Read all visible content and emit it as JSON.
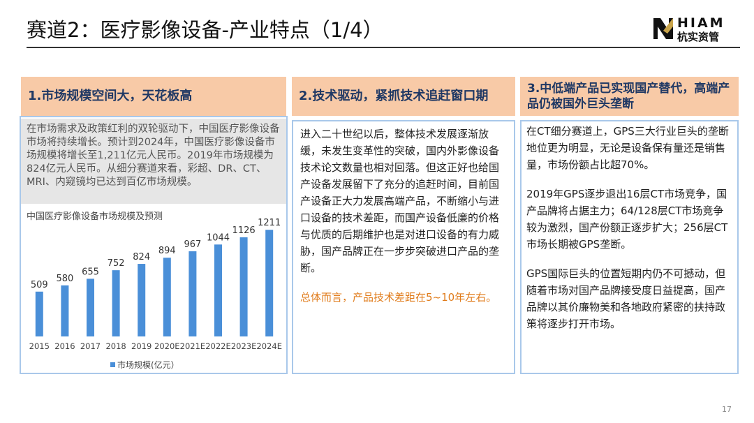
{
  "header": {
    "title": "赛道2：医疗影像设备-产业特点（1/4）",
    "logo_en": "HIAM",
    "logo_cn": "杭实资管"
  },
  "columns": [
    {
      "heading": "1.市场规模空间大，天花板高",
      "paragraphs": [
        "在市场需求及政策红利的双轮驱动下，中国医疗影像设备市场将持续增长。预计到2024年，中国医疗影像设备市场规模将增长至1,211亿元人民币。2019年市场规模为824亿元人民币。从细分赛道来看，彩超、DR、CT、MRI、内窥镜均已达到百亿市场规模。"
      ]
    },
    {
      "heading": "2.技术驱动，紧抓技术追赶窗口期",
      "paragraphs": [
        "进入二十世纪以后，整体技术发展逐渐放缓，未发生变革性的突破，国内外影像设备技术论文数量也相对回落。但这正好也给国产设备发展留下了充分的追赶时间，目前国产设备正大力发展高端产品，不断缩小与进口设备的技术差距，而国产设备低廉的价格与优质的后期维护也是对进口设备的有力威胁，国产品牌正在一步步突破进口产品的垄断。",
        "总体而言，产品技术差距在5~10年左右。"
      ]
    },
    {
      "heading": "3.中低端产品已实现国产替代，高端产品仍被国外巨头垄断",
      "paragraphs": [
        "在CT细分赛道上，GPS三大行业巨头的垄断地位更为明显，无论是设备保有量还是销售量，市场份额占比超70%。",
        "2019年GPS逐步退出16层CT市场竞争，国产品牌将占据主力；64/128层CT市场竞争较为激烈，国产份额正逐步扩大；256层CT市场长期被GPS垄断。",
        "GPS国际巨头的位置短期内仍不可撼动，但随着市场对国产品牌接受度日益提高，国产品牌以其价廉物美和各地政府紧密的扶持政策将逐步打开市场。"
      ]
    }
  ],
  "chart_data": {
    "type": "bar",
    "title": "中国医疗影像设备市场规模及预测",
    "categories": [
      "2015",
      "2016",
      "2017",
      "2018",
      "2019",
      "2020E",
      "2021E",
      "2022E",
      "2023E",
      "2024E"
    ],
    "series": [
      {
        "name": "市场规模(亿元）",
        "color": "#4a8fd8",
        "values": [
          509,
          580,
          655,
          752,
          824,
          894,
          967,
          1044,
          1126,
          1211
        ]
      }
    ],
    "ylim": [
      0,
      1300
    ],
    "legend": "bottom"
  },
  "page_number": "17"
}
